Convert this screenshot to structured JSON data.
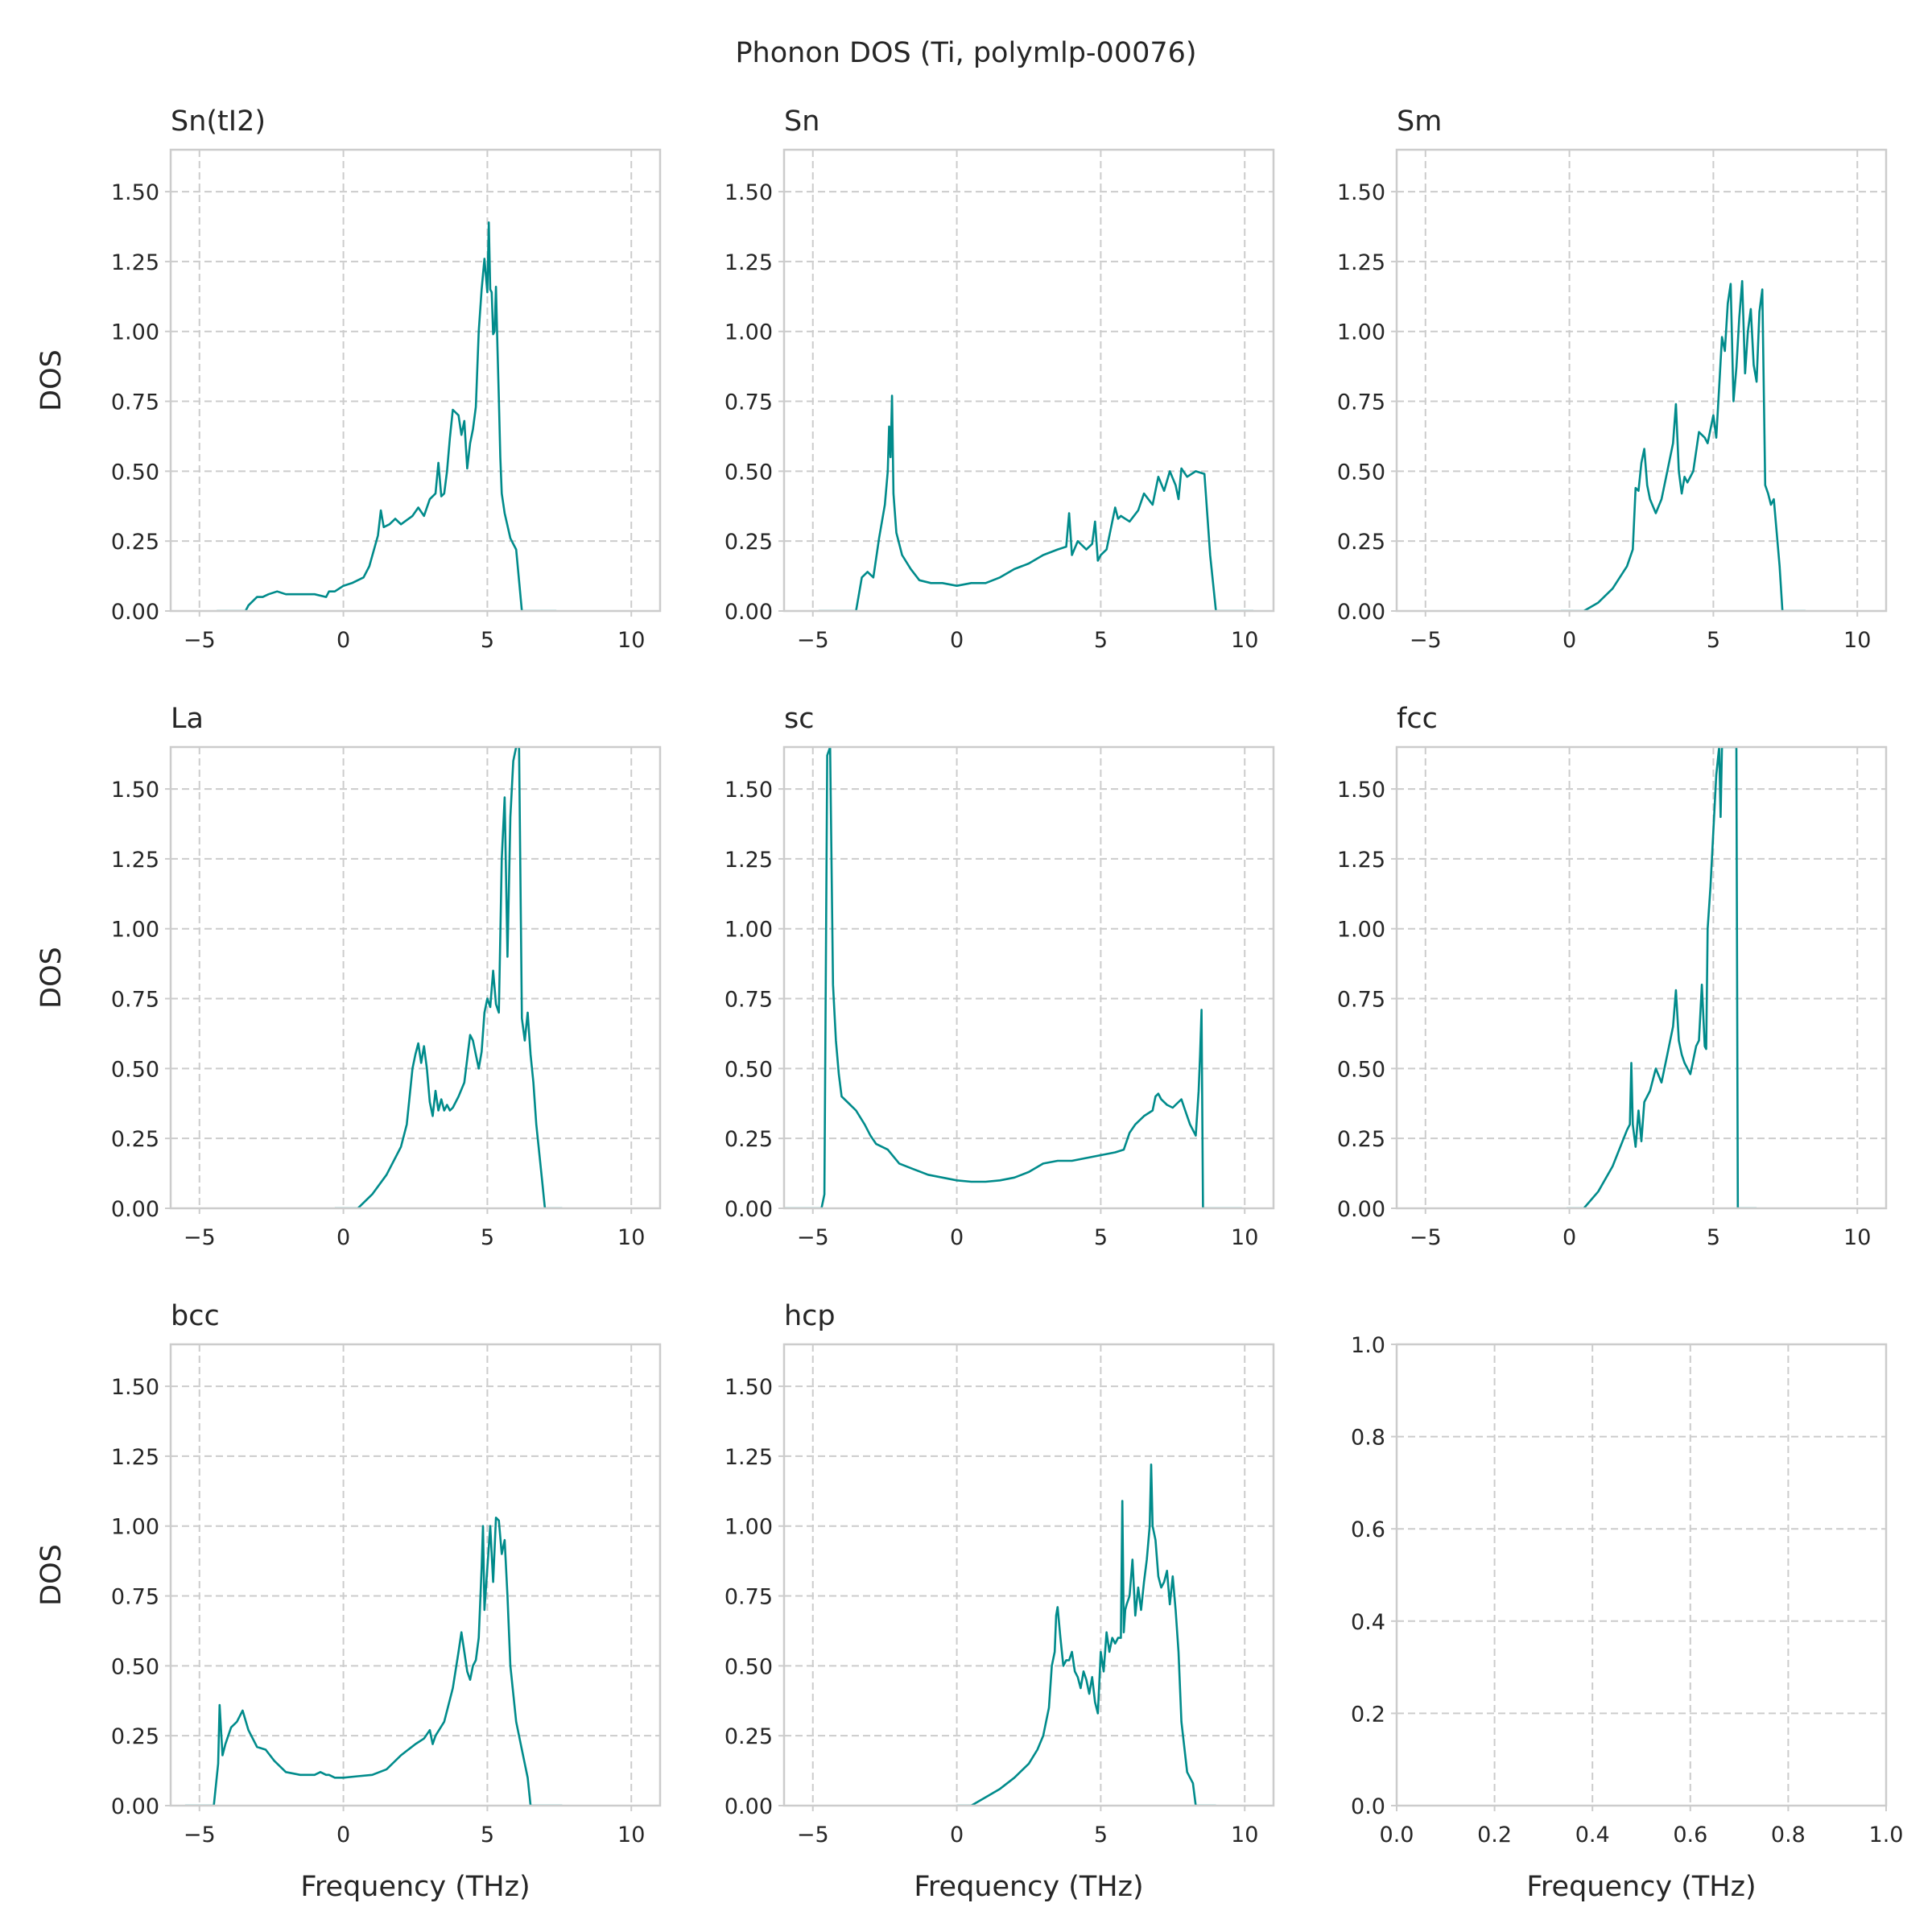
{
  "figure": {
    "title": "Phonon DOS (Ti, polymlp-00076)"
  },
  "chart_data": [
    {
      "type": "line",
      "title": "Sn(tI2)",
      "xlabel": "",
      "ylabel": "DOS",
      "xlim": [
        -6,
        11
      ],
      "ylim": [
        0,
        1.65
      ],
      "xticks": [
        -5,
        0,
        5,
        10
      ],
      "yticks": [
        0.0,
        0.25,
        0.5,
        0.75,
        1.0,
        1.25,
        1.5
      ],
      "grid": true,
      "color": "#008b8b",
      "x": [
        -4.4,
        -3.4,
        -3.3,
        -3.0,
        -2.8,
        -2.6,
        -2.3,
        -2.0,
        -1.5,
        -1.0,
        -0.6,
        -0.5,
        -0.3,
        0.0,
        0.3,
        0.7,
        0.9,
        1.2,
        1.3,
        1.4,
        1.6,
        1.8,
        2.0,
        2.4,
        2.6,
        2.8,
        3.0,
        3.2,
        3.3,
        3.4,
        3.5,
        3.6,
        3.7,
        3.8,
        4.0,
        4.1,
        4.2,
        4.3,
        4.4,
        4.5,
        4.6,
        4.7,
        4.8,
        4.9,
        5.0,
        5.05,
        5.1,
        5.15,
        5.2,
        5.25,
        5.3,
        5.35,
        5.4,
        5.45,
        5.5,
        5.6,
        5.8,
        6.0,
        6.2,
        6.4,
        6.5,
        7.4
      ],
      "y": [
        0.0,
        0.0,
        0.02,
        0.05,
        0.05,
        0.06,
        0.07,
        0.06,
        0.06,
        0.06,
        0.05,
        0.07,
        0.07,
        0.09,
        0.1,
        0.12,
        0.16,
        0.27,
        0.36,
        0.3,
        0.31,
        0.33,
        0.31,
        0.34,
        0.37,
        0.34,
        0.4,
        0.42,
        0.53,
        0.41,
        0.42,
        0.5,
        0.62,
        0.72,
        0.7,
        0.63,
        0.68,
        0.51,
        0.6,
        0.65,
        0.73,
        1.0,
        1.15,
        1.26,
        1.14,
        1.39,
        1.15,
        1.14,
        0.99,
        1.0,
        1.16,
        0.95,
        0.76,
        0.55,
        0.42,
        0.35,
        0.26,
        0.22,
        0.0,
        0.0,
        0.0,
        0.0
      ]
    },
    {
      "type": "line",
      "title": "Sn",
      "xlabel": "",
      "ylabel": "",
      "xlim": [
        -6,
        11
      ],
      "ylim": [
        0,
        1.65
      ],
      "xticks": [
        -5,
        0,
        5,
        10
      ],
      "yticks": [
        0.0,
        0.25,
        0.5,
        0.75,
        1.0,
        1.25,
        1.5
      ],
      "grid": true,
      "color": "#008b8b",
      "x": [
        -4.8,
        -3.5,
        -3.3,
        -3.1,
        -2.9,
        -2.7,
        -2.5,
        -2.4,
        -2.35,
        -2.3,
        -2.25,
        -2.2,
        -2.1,
        -1.9,
        -1.6,
        -1.3,
        -0.9,
        -0.5,
        0.0,
        0.5,
        1.0,
        1.5,
        2.0,
        2.5,
        3.0,
        3.5,
        3.8,
        3.9,
        4.0,
        4.2,
        4.5,
        4.7,
        4.8,
        4.9,
        5.0,
        5.2,
        5.5,
        5.6,
        5.7,
        6.0,
        6.3,
        6.5,
        6.8,
        7.0,
        7.2,
        7.4,
        7.6,
        7.7,
        7.8,
        8.0,
        8.3,
        8.6,
        8.8,
        9.0,
        10.3
      ],
      "y": [
        0.0,
        0.0,
        0.12,
        0.14,
        0.12,
        0.26,
        0.38,
        0.5,
        0.66,
        0.55,
        0.77,
        0.42,
        0.28,
        0.2,
        0.15,
        0.11,
        0.1,
        0.1,
        0.09,
        0.1,
        0.1,
        0.12,
        0.15,
        0.17,
        0.2,
        0.22,
        0.23,
        0.35,
        0.2,
        0.25,
        0.22,
        0.24,
        0.32,
        0.18,
        0.2,
        0.22,
        0.37,
        0.33,
        0.34,
        0.32,
        0.36,
        0.42,
        0.38,
        0.48,
        0.43,
        0.5,
        0.45,
        0.4,
        0.51,
        0.48,
        0.5,
        0.49,
        0.2,
        0.0,
        0.0
      ]
    },
    {
      "type": "line",
      "title": "Sm",
      "xlabel": "",
      "ylabel": "",
      "xlim": [
        -6,
        11
      ],
      "ylim": [
        0,
        1.65
      ],
      "xticks": [
        -5,
        0,
        5,
        10
      ],
      "yticks": [
        0.0,
        0.25,
        0.5,
        0.75,
        1.0,
        1.25,
        1.5
      ],
      "grid": true,
      "color": "#008b8b",
      "x": [
        -0.3,
        0.5,
        1.0,
        1.5,
        2.0,
        2.2,
        2.3,
        2.4,
        2.5,
        2.6,
        2.7,
        2.8,
        3.0,
        3.2,
        3.4,
        3.6,
        3.7,
        3.8,
        3.9,
        4.0,
        4.1,
        4.3,
        4.5,
        4.7,
        4.8,
        4.9,
        5.0,
        5.1,
        5.2,
        5.3,
        5.4,
        5.5,
        5.6,
        5.7,
        5.8,
        5.9,
        6.0,
        6.1,
        6.2,
        6.3,
        6.4,
        6.5,
        6.6,
        6.7,
        6.8,
        6.9,
        7.0,
        7.1,
        7.3,
        7.4,
        8.2
      ],
      "y": [
        0.0,
        0.0,
        0.03,
        0.08,
        0.16,
        0.22,
        0.44,
        0.43,
        0.53,
        0.58,
        0.45,
        0.4,
        0.35,
        0.4,
        0.5,
        0.6,
        0.74,
        0.5,
        0.42,
        0.48,
        0.46,
        0.5,
        0.64,
        0.62,
        0.6,
        0.65,
        0.7,
        0.62,
        0.8,
        0.98,
        0.93,
        1.1,
        1.17,
        0.75,
        0.87,
        1.05,
        1.18,
        0.85,
        1.0,
        1.08,
        0.88,
        0.82,
        1.07,
        1.15,
        0.45,
        0.42,
        0.38,
        0.4,
        0.16,
        0.0,
        0.0
      ]
    },
    {
      "type": "line",
      "title": "La",
      "xlabel": "",
      "ylabel": "DOS",
      "xlim": [
        -6,
        11
      ],
      "ylim": [
        0,
        1.65
      ],
      "xticks": [
        -5,
        0,
        5,
        10
      ],
      "yticks": [
        0.0,
        0.25,
        0.5,
        0.75,
        1.0,
        1.25,
        1.5
      ],
      "grid": true,
      "color": "#008b8b",
      "x": [
        -0.3,
        0.5,
        1.0,
        1.5,
        2.0,
        2.2,
        2.4,
        2.5,
        2.6,
        2.7,
        2.8,
        2.9,
        3.0,
        3.1,
        3.2,
        3.3,
        3.4,
        3.5,
        3.6,
        3.7,
        3.8,
        4.0,
        4.2,
        4.4,
        4.5,
        4.6,
        4.7,
        4.8,
        4.9,
        5.0,
        5.1,
        5.2,
        5.3,
        5.4,
        5.5,
        5.6,
        5.7,
        5.8,
        5.9,
        6.0,
        6.1,
        6.2,
        6.3,
        6.4,
        6.5,
        6.6,
        6.7,
        6.8,
        6.9,
        7.0,
        7.2,
        7.6
      ],
      "y": [
        0.0,
        0.0,
        0.05,
        0.12,
        0.22,
        0.3,
        0.5,
        0.55,
        0.59,
        0.52,
        0.58,
        0.5,
        0.38,
        0.33,
        0.42,
        0.35,
        0.39,
        0.35,
        0.37,
        0.35,
        0.36,
        0.4,
        0.45,
        0.62,
        0.6,
        0.55,
        0.5,
        0.56,
        0.7,
        0.75,
        0.72,
        0.85,
        0.73,
        0.7,
        1.25,
        1.47,
        0.9,
        1.4,
        1.6,
        1.65,
        1.65,
        0.68,
        0.6,
        0.7,
        0.55,
        0.45,
        0.3,
        0.2,
        0.1,
        0.0,
        0.0,
        0.0
      ]
    },
    {
      "type": "line",
      "title": "sc",
      "xlabel": "",
      "ylabel": "",
      "xlim": [
        -6,
        11
      ],
      "ylim": [
        0,
        1.65
      ],
      "xticks": [
        -5,
        0,
        5,
        10
      ],
      "yticks": [
        0.0,
        0.25,
        0.5,
        0.75,
        1.0,
        1.25,
        1.5
      ],
      "grid": true,
      "color": "#008b8b",
      "x": [
        -6,
        -4.7,
        -4.6,
        -4.5,
        -4.4,
        -4.3,
        -4.2,
        -4.1,
        -4.0,
        -3.8,
        -3.5,
        -3.2,
        -3.0,
        -2.8,
        -2.4,
        -2.0,
        -1.5,
        -1.0,
        -0.5,
        0.0,
        0.5,
        1.0,
        1.5,
        2.0,
        2.5,
        3.0,
        3.5,
        4.0,
        4.5,
        5.0,
        5.5,
        5.8,
        6.0,
        6.2,
        6.5,
        6.8,
        6.9,
        7.0,
        7.1,
        7.3,
        7.5,
        7.7,
        7.8,
        7.9,
        8.0,
        8.1,
        8.3,
        8.4,
        8.45,
        8.5,
        8.55,
        9.9
      ],
      "y": [
        0.0,
        0.0,
        0.05,
        1.62,
        1.65,
        0.8,
        0.6,
        0.48,
        0.4,
        0.38,
        0.35,
        0.3,
        0.26,
        0.23,
        0.21,
        0.16,
        0.14,
        0.12,
        0.11,
        0.1,
        0.095,
        0.095,
        0.1,
        0.11,
        0.13,
        0.16,
        0.17,
        0.17,
        0.18,
        0.19,
        0.2,
        0.21,
        0.27,
        0.3,
        0.33,
        0.35,
        0.4,
        0.41,
        0.39,
        0.37,
        0.36,
        0.38,
        0.39,
        0.36,
        0.33,
        0.3,
        0.26,
        0.42,
        0.55,
        0.71,
        0.0,
        0.0
      ]
    },
    {
      "type": "line",
      "title": "fcc",
      "xlabel": "",
      "ylabel": "",
      "xlim": [
        -6,
        11
      ],
      "ylim": [
        0,
        1.65
      ],
      "xticks": [
        -5,
        0,
        5,
        10
      ],
      "yticks": [
        0.0,
        0.25,
        0.5,
        0.75,
        1.0,
        1.25,
        1.5
      ],
      "grid": true,
      "color": "#008b8b",
      "x": [
        -0.1,
        0.5,
        1.0,
        1.5,
        2.0,
        2.1,
        2.15,
        2.2,
        2.3,
        2.4,
        2.5,
        2.6,
        2.8,
        3.0,
        3.2,
        3.4,
        3.6,
        3.7,
        3.8,
        3.9,
        4.0,
        4.2,
        4.4,
        4.5,
        4.6,
        4.7,
        4.75,
        4.8,
        4.9,
        5.0,
        5.1,
        5.2,
        5.25,
        5.3,
        5.35,
        5.4,
        5.45,
        5.5,
        5.6,
        5.7,
        5.8,
        5.85,
        5.9,
        6.0,
        6.5
      ],
      "y": [
        0.0,
        0.0,
        0.06,
        0.15,
        0.28,
        0.3,
        0.52,
        0.3,
        0.22,
        0.35,
        0.24,
        0.38,
        0.42,
        0.5,
        0.45,
        0.55,
        0.65,
        0.78,
        0.6,
        0.55,
        0.52,
        0.48,
        0.58,
        0.6,
        0.8,
        0.58,
        0.57,
        1.0,
        1.15,
        1.35,
        1.55,
        1.65,
        1.4,
        1.65,
        1.65,
        1.65,
        1.65,
        1.65,
        1.65,
        1.65,
        1.65,
        0.0,
        0.0,
        0.0,
        0.0
      ]
    },
    {
      "type": "line",
      "title": "bcc",
      "xlabel": "Frequency (THz)",
      "ylabel": "DOS",
      "xlim": [
        -6,
        11
      ],
      "ylim": [
        0,
        1.65
      ],
      "xticks": [
        -5,
        0,
        5,
        10
      ],
      "yticks": [
        0.0,
        0.25,
        0.5,
        0.75,
        1.0,
        1.25,
        1.5
      ],
      "grid": true,
      "color": "#008b8b",
      "x": [
        -5.5,
        -4.5,
        -4.4,
        -4.35,
        -4.3,
        -4.2,
        -4.1,
        -3.9,
        -3.7,
        -3.5,
        -3.3,
        -3.0,
        -2.7,
        -2.4,
        -2.0,
        -1.5,
        -1.0,
        -0.8,
        -0.6,
        -0.5,
        -0.3,
        0.0,
        0.5,
        1.0,
        1.5,
        2.0,
        2.5,
        2.8,
        3.0,
        3.1,
        3.2,
        3.5,
        3.8,
        4.0,
        4.1,
        4.2,
        4.3,
        4.4,
        4.5,
        4.6,
        4.7,
        4.8,
        4.85,
        4.9,
        5.0,
        5.1,
        5.2,
        5.3,
        5.4,
        5.5,
        5.6,
        5.7,
        5.8,
        6.0,
        6.2,
        6.4,
        6.5,
        7.6
      ],
      "y": [
        0.0,
        0.0,
        0.1,
        0.15,
        0.36,
        0.18,
        0.22,
        0.28,
        0.3,
        0.34,
        0.27,
        0.21,
        0.2,
        0.16,
        0.12,
        0.11,
        0.11,
        0.12,
        0.11,
        0.11,
        0.1,
        0.1,
        0.105,
        0.11,
        0.13,
        0.18,
        0.22,
        0.24,
        0.27,
        0.22,
        0.25,
        0.3,
        0.42,
        0.55,
        0.62,
        0.55,
        0.48,
        0.45,
        0.5,
        0.52,
        0.6,
        0.85,
        1.0,
        0.7,
        0.85,
        1.0,
        0.8,
        1.03,
        1.02,
        0.9,
        0.95,
        0.75,
        0.5,
        0.3,
        0.2,
        0.1,
        0.0,
        0.0
      ]
    },
    {
      "type": "line",
      "title": "hcp",
      "xlabel": "Frequency (THz)",
      "ylabel": "",
      "xlim": [
        -6,
        11
      ],
      "ylim": [
        0,
        1.65
      ],
      "xticks": [
        -5,
        0,
        5,
        10
      ],
      "yticks": [
        0.0,
        0.25,
        0.5,
        0.75,
        1.0,
        1.25,
        1.5
      ],
      "grid": true,
      "color": "#008b8b",
      "x": [
        0.0,
        0.5,
        1.0,
        1.5,
        2.0,
        2.5,
        2.8,
        3.0,
        3.2,
        3.3,
        3.4,
        3.45,
        3.5,
        3.6,
        3.7,
        3.8,
        3.9,
        4.0,
        4.1,
        4.2,
        4.3,
        4.4,
        4.5,
        4.6,
        4.7,
        4.8,
        4.9,
        5.0,
        5.1,
        5.2,
        5.3,
        5.4,
        5.5,
        5.6,
        5.7,
        5.75,
        5.8,
        5.85,
        5.9,
        6.0,
        6.1,
        6.2,
        6.3,
        6.4,
        6.5,
        6.6,
        6.7,
        6.75,
        6.8,
        6.9,
        7.0,
        7.1,
        7.2,
        7.3,
        7.4,
        7.5,
        7.6,
        7.7,
        7.8,
        8.0,
        8.2,
        8.3,
        9.0
      ],
      "y": [
        0.0,
        0.0,
        0.03,
        0.06,
        0.1,
        0.15,
        0.2,
        0.25,
        0.35,
        0.5,
        0.55,
        0.68,
        0.71,
        0.6,
        0.5,
        0.52,
        0.52,
        0.55,
        0.48,
        0.46,
        0.42,
        0.48,
        0.45,
        0.4,
        0.46,
        0.37,
        0.33,
        0.55,
        0.48,
        0.62,
        0.55,
        0.6,
        0.58,
        0.6,
        0.6,
        1.09,
        0.62,
        0.7,
        0.72,
        0.75,
        0.88,
        0.68,
        0.78,
        0.7,
        0.8,
        0.88,
        1.0,
        1.22,
        1.0,
        0.95,
        0.82,
        0.78,
        0.8,
        0.84,
        0.72,
        0.82,
        0.7,
        0.55,
        0.3,
        0.12,
        0.08,
        0.0,
        0.0
      ]
    },
    {
      "type": "line",
      "title": "",
      "xlabel": "Frequency (THz)",
      "ylabel": "",
      "xlim": [
        0,
        1
      ],
      "ylim": [
        0,
        1
      ],
      "xticks": [
        0.0,
        0.2,
        0.4,
        0.6,
        0.8,
        1.0
      ],
      "yticks": [
        0.0,
        0.2,
        0.4,
        0.6,
        0.8,
        1.0
      ],
      "grid": true,
      "color": "#008b8b",
      "x": [],
      "y": []
    }
  ]
}
